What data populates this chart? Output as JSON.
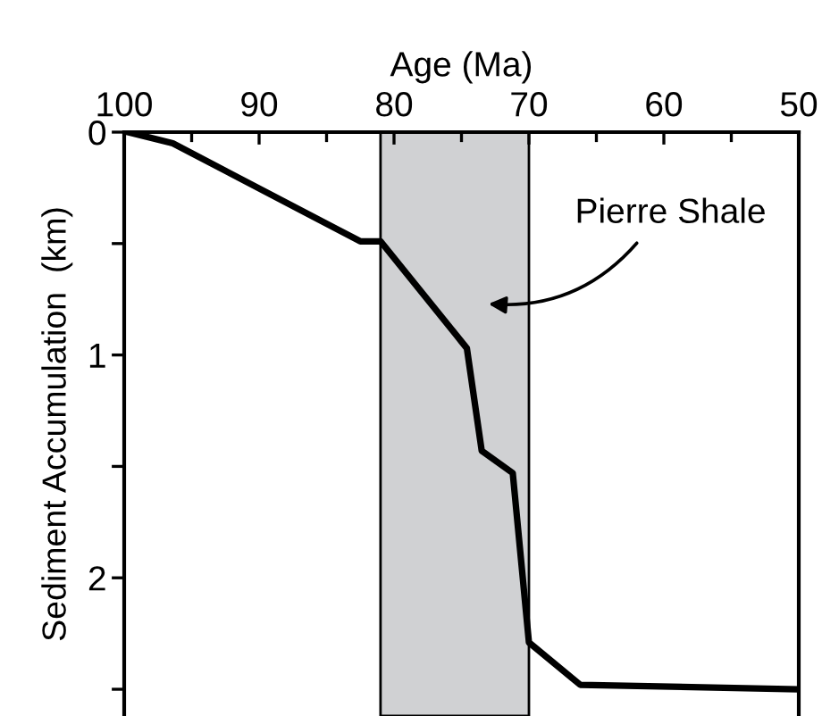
{
  "chart_data": {
    "type": "line",
    "xlabel": "Age (Ma)",
    "ylabel": "Sediment Accumulation  (km)",
    "x": [
      99.7,
      96.4,
      82.5,
      81.0,
      75.0,
      74.6,
      73.5,
      71.2,
      70.0,
      66.2,
      50.0
    ],
    "series": [
      {
        "color": "#000000",
        "values": [
          0,
          0.05,
          0.49,
          0.49,
          0.94,
          0.97,
          1.43,
          1.53,
          2.29,
          2.48,
          2.5
        ]
      }
    ],
    "xlim": [
      100,
      50
    ],
    "xticks": [
      100,
      90,
      80,
      70,
      60,
      50
    ],
    "ylim": [
      2.62,
      0
    ],
    "yticks": [
      0,
      {
        "value": 0.5,
        "label": null
      },
      1,
      {
        "value": 1.5,
        "label": null
      },
      2,
      {
        "value": 2.5,
        "label": null
      }
    ],
    "bands": [
      {
        "axis": "x",
        "from": 81,
        "to": 70,
        "color": "#d0d1d3"
      }
    ],
    "annotations": [
      "Pierre Shale"
    ],
    "grid": false,
    "legend": false,
    "marker": "none",
    "line_style": "solid"
  }
}
